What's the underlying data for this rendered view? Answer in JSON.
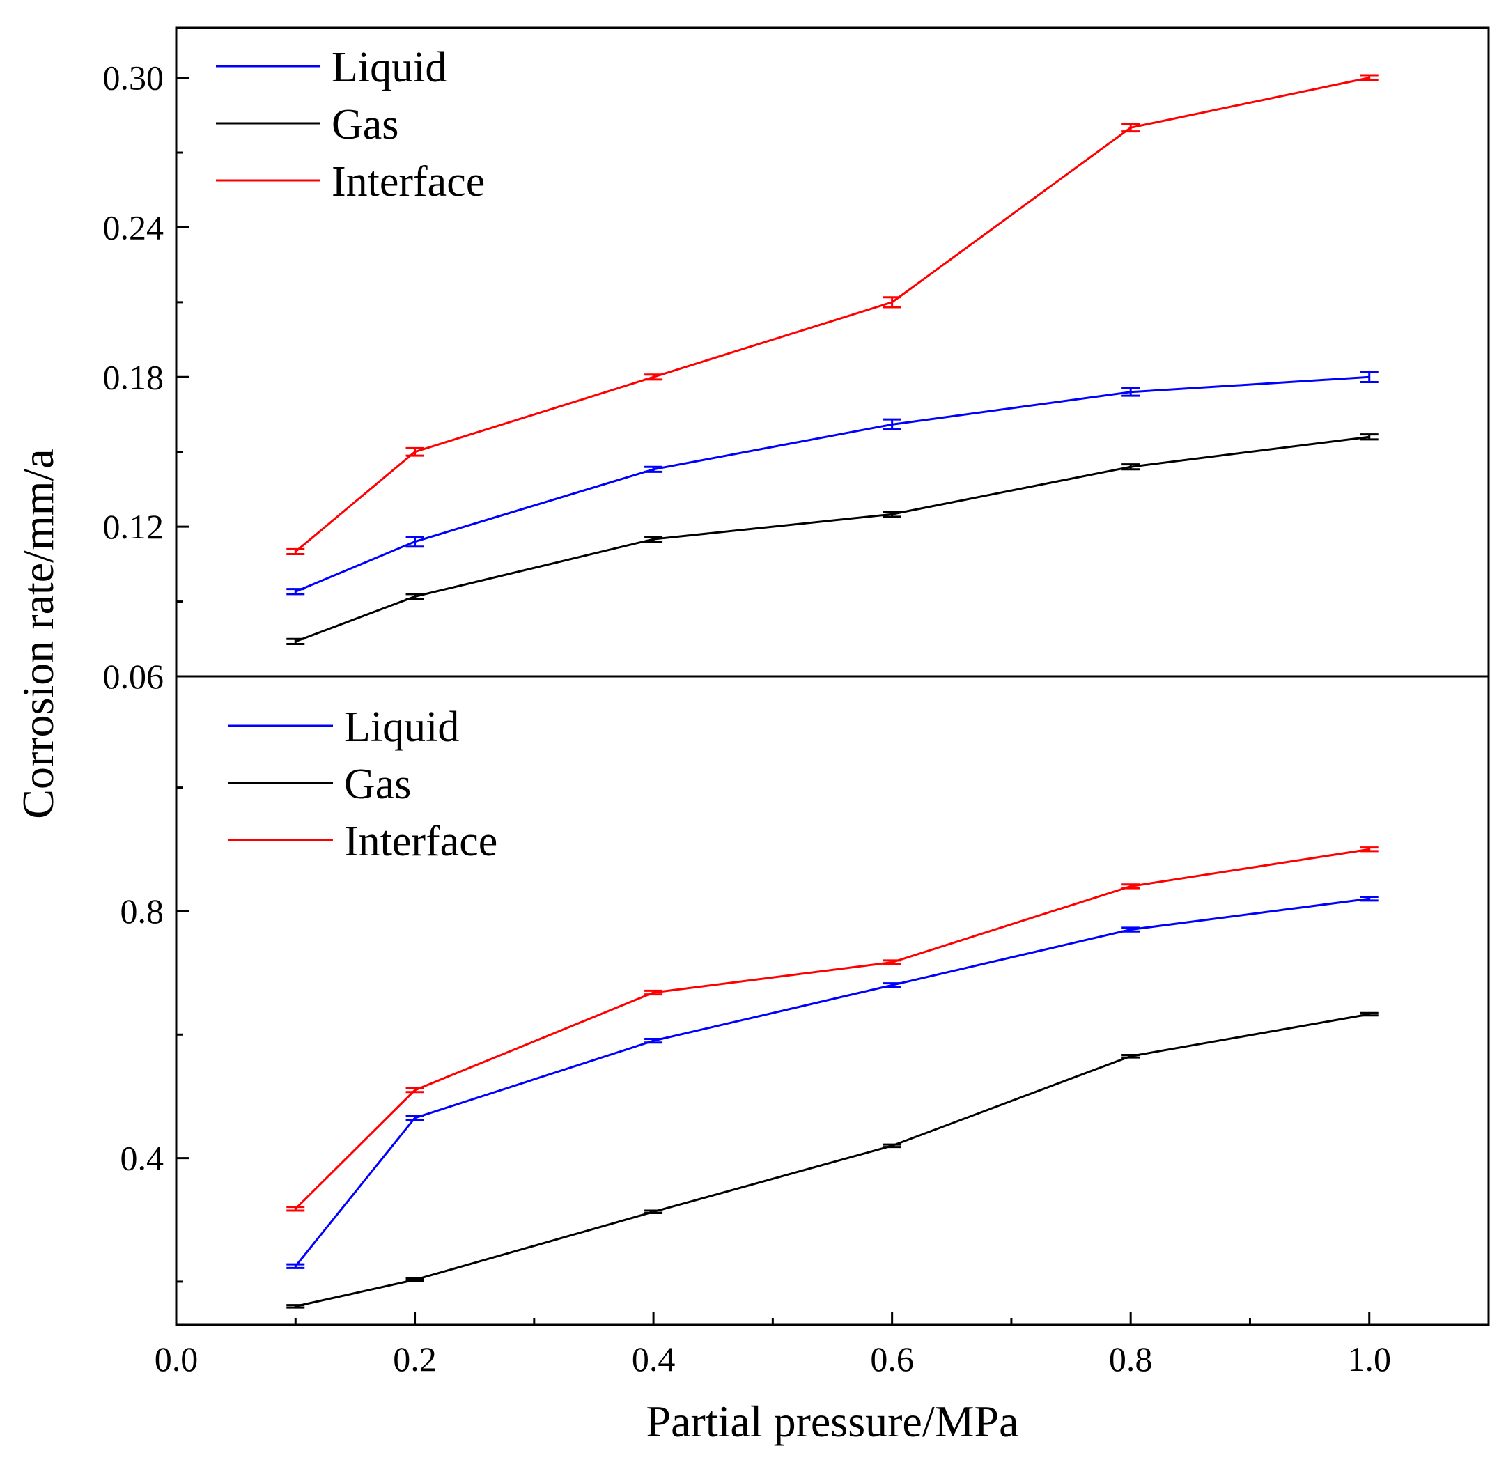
{
  "chart_data": [
    {
      "type": "line",
      "panel": "top",
      "xlim": [
        0.0,
        1.1
      ],
      "ylim": [
        0.06,
        0.32
      ],
      "yticks": [
        "0.06",
        "0.12",
        "0.18",
        "0.24",
        "0.30"
      ],
      "legend_position": "top-left",
      "x": [
        0.1,
        0.2,
        0.4,
        0.6,
        0.8,
        1.0
      ],
      "series": [
        {
          "name": "Liquid",
          "color": "#0000ff",
          "values": [
            0.094,
            0.114,
            0.143,
            0.161,
            0.174,
            0.18
          ],
          "errors": [
            0.001,
            0.002,
            0.001,
            0.002,
            0.0015,
            0.002
          ]
        },
        {
          "name": "Gas",
          "color": "#000000",
          "values": [
            0.074,
            0.092,
            0.115,
            0.125,
            0.144,
            0.156
          ],
          "errors": [
            0.001,
            0.001,
            0.001,
            0.001,
            0.001,
            0.001
          ]
        },
        {
          "name": "Interface",
          "color": "#ff0000",
          "values": [
            0.11,
            0.15,
            0.18,
            0.21,
            0.28,
            0.3
          ],
          "errors": [
            0.001,
            0.0015,
            0.001,
            0.002,
            0.0015,
            0.001
          ]
        }
      ]
    },
    {
      "type": "line",
      "panel": "bottom",
      "xlim": [
        0.0,
        1.1
      ],
      "ylim": [
        0.13,
        1.18
      ],
      "yticks": [
        "0.4",
        "0.8"
      ],
      "legend_position": "top-left",
      "x": [
        0.1,
        0.2,
        0.4,
        0.6,
        0.8,
        1.0
      ],
      "series": [
        {
          "name": "Liquid",
          "color": "#0000ff",
          "values": [
            0.225,
            0.465,
            0.59,
            0.68,
            0.77,
            0.82
          ],
          "errors": [
            0.003,
            0.003,
            0.003,
            0.003,
            0.003,
            0.003
          ]
        },
        {
          "name": "Gas",
          "color": "#000000",
          "values": [
            0.16,
            0.203,
            0.313,
            0.42,
            0.565,
            0.633
          ],
          "errors": [
            0.002,
            0.002,
            0.002,
            0.002,
            0.002,
            0.002
          ]
        },
        {
          "name": "Interface",
          "color": "#ff0000",
          "values": [
            0.318,
            0.51,
            0.668,
            0.717,
            0.84,
            0.9
          ],
          "errors": [
            0.003,
            0.003,
            0.003,
            0.003,
            0.003,
            0.003
          ]
        }
      ]
    }
  ],
  "shared": {
    "xticks": [
      "0.0",
      "0.2",
      "0.4",
      "0.6",
      "0.8",
      "1.0"
    ],
    "xlabel": "Partial pressure/MPa",
    "ylabel": "Corrosion rate/mm/a"
  }
}
